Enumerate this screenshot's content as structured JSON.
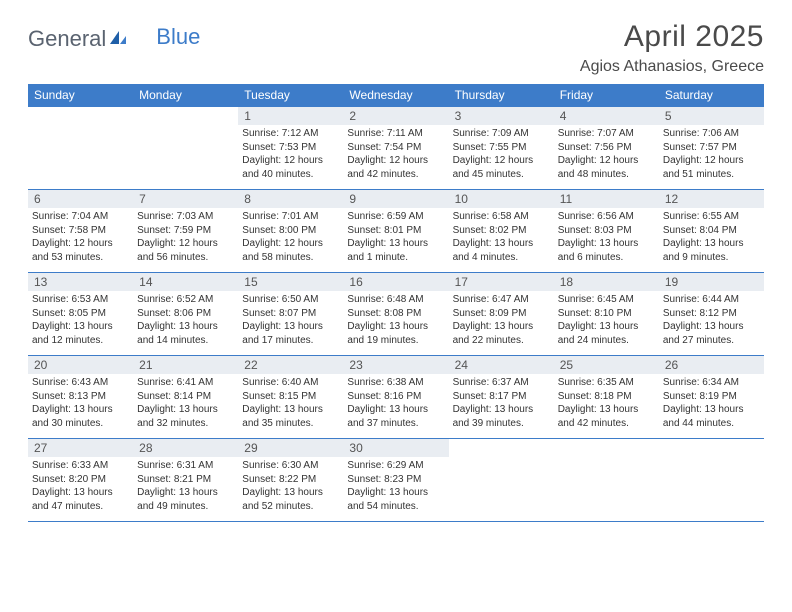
{
  "logo": {
    "text1": "General",
    "text2": "Blue"
  },
  "title": "April 2025",
  "location": "Agios Athanasios, Greece",
  "colors": {
    "header_bg": "#3d7cc9",
    "header_text": "#ffffff",
    "daynum_bg": "#e9edf2",
    "row_border": "#3d7cc9",
    "body_text": "#333333",
    "title_text": "#4a4a4a"
  },
  "weekdays": [
    "Sunday",
    "Monday",
    "Tuesday",
    "Wednesday",
    "Thursday",
    "Friday",
    "Saturday"
  ],
  "weeks": [
    [
      null,
      null,
      {
        "d": "1",
        "sr": "7:12 AM",
        "ss": "7:53 PM",
        "dl": "12 hours and 40 minutes."
      },
      {
        "d": "2",
        "sr": "7:11 AM",
        "ss": "7:54 PM",
        "dl": "12 hours and 42 minutes."
      },
      {
        "d": "3",
        "sr": "7:09 AM",
        "ss": "7:55 PM",
        "dl": "12 hours and 45 minutes."
      },
      {
        "d": "4",
        "sr": "7:07 AM",
        "ss": "7:56 PM",
        "dl": "12 hours and 48 minutes."
      },
      {
        "d": "5",
        "sr": "7:06 AM",
        "ss": "7:57 PM",
        "dl": "12 hours and 51 minutes."
      }
    ],
    [
      {
        "d": "6",
        "sr": "7:04 AM",
        "ss": "7:58 PM",
        "dl": "12 hours and 53 minutes."
      },
      {
        "d": "7",
        "sr": "7:03 AM",
        "ss": "7:59 PM",
        "dl": "12 hours and 56 minutes."
      },
      {
        "d": "8",
        "sr": "7:01 AM",
        "ss": "8:00 PM",
        "dl": "12 hours and 58 minutes."
      },
      {
        "d": "9",
        "sr": "6:59 AM",
        "ss": "8:01 PM",
        "dl": "13 hours and 1 minute."
      },
      {
        "d": "10",
        "sr": "6:58 AM",
        "ss": "8:02 PM",
        "dl": "13 hours and 4 minutes."
      },
      {
        "d": "11",
        "sr": "6:56 AM",
        "ss": "8:03 PM",
        "dl": "13 hours and 6 minutes."
      },
      {
        "d": "12",
        "sr": "6:55 AM",
        "ss": "8:04 PM",
        "dl": "13 hours and 9 minutes."
      }
    ],
    [
      {
        "d": "13",
        "sr": "6:53 AM",
        "ss": "8:05 PM",
        "dl": "13 hours and 12 minutes."
      },
      {
        "d": "14",
        "sr": "6:52 AM",
        "ss": "8:06 PM",
        "dl": "13 hours and 14 minutes."
      },
      {
        "d": "15",
        "sr": "6:50 AM",
        "ss": "8:07 PM",
        "dl": "13 hours and 17 minutes."
      },
      {
        "d": "16",
        "sr": "6:48 AM",
        "ss": "8:08 PM",
        "dl": "13 hours and 19 minutes."
      },
      {
        "d": "17",
        "sr": "6:47 AM",
        "ss": "8:09 PM",
        "dl": "13 hours and 22 minutes."
      },
      {
        "d": "18",
        "sr": "6:45 AM",
        "ss": "8:10 PM",
        "dl": "13 hours and 24 minutes."
      },
      {
        "d": "19",
        "sr": "6:44 AM",
        "ss": "8:12 PM",
        "dl": "13 hours and 27 minutes."
      }
    ],
    [
      {
        "d": "20",
        "sr": "6:43 AM",
        "ss": "8:13 PM",
        "dl": "13 hours and 30 minutes."
      },
      {
        "d": "21",
        "sr": "6:41 AM",
        "ss": "8:14 PM",
        "dl": "13 hours and 32 minutes."
      },
      {
        "d": "22",
        "sr": "6:40 AM",
        "ss": "8:15 PM",
        "dl": "13 hours and 35 minutes."
      },
      {
        "d": "23",
        "sr": "6:38 AM",
        "ss": "8:16 PM",
        "dl": "13 hours and 37 minutes."
      },
      {
        "d": "24",
        "sr": "6:37 AM",
        "ss": "8:17 PM",
        "dl": "13 hours and 39 minutes."
      },
      {
        "d": "25",
        "sr": "6:35 AM",
        "ss": "8:18 PM",
        "dl": "13 hours and 42 minutes."
      },
      {
        "d": "26",
        "sr": "6:34 AM",
        "ss": "8:19 PM",
        "dl": "13 hours and 44 minutes."
      }
    ],
    [
      {
        "d": "27",
        "sr": "6:33 AM",
        "ss": "8:20 PM",
        "dl": "13 hours and 47 minutes."
      },
      {
        "d": "28",
        "sr": "6:31 AM",
        "ss": "8:21 PM",
        "dl": "13 hours and 49 minutes."
      },
      {
        "d": "29",
        "sr": "6:30 AM",
        "ss": "8:22 PM",
        "dl": "13 hours and 52 minutes."
      },
      {
        "d": "30",
        "sr": "6:29 AM",
        "ss": "8:23 PM",
        "dl": "13 hours and 54 minutes."
      },
      null,
      null,
      null
    ]
  ],
  "labels": {
    "sunrise": "Sunrise: ",
    "sunset": "Sunset: ",
    "daylight": "Daylight: "
  }
}
